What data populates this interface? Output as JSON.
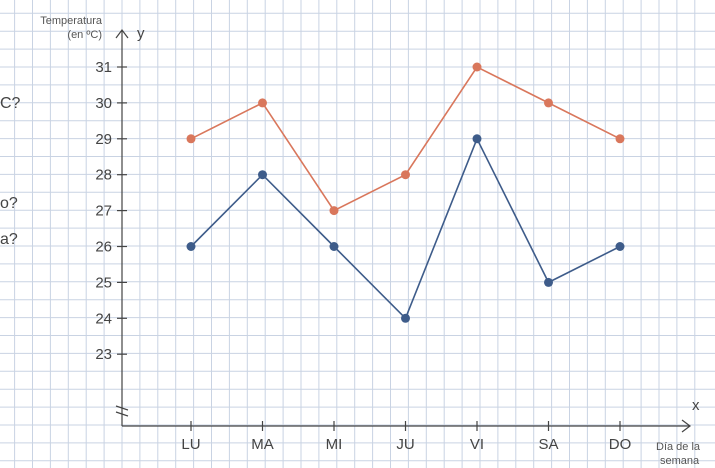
{
  "chart_data": {
    "type": "line",
    "ylabel_line1": "Temperatura",
    "ylabel_line2": "(en ºC)",
    "y_axis_letter": "y",
    "x_axis_letter": "x",
    "xlabel_line1": "Día de la",
    "xlabel_line2": "semana",
    "categories": [
      "LU",
      "MA",
      "MI",
      "JU",
      "VI",
      "SA",
      "DO"
    ],
    "y_ticks": [
      23,
      24,
      25,
      26,
      27,
      28,
      29,
      30,
      31
    ],
    "ylim": [
      23,
      31
    ],
    "y_axis_break": true,
    "grid": true,
    "series": [
      {
        "color": "#d9775c",
        "values": [
          29,
          30,
          27,
          28,
          31,
          30,
          29
        ]
      },
      {
        "color": "#3e5c8a",
        "values": [
          26,
          28,
          26,
          24,
          29,
          25,
          26
        ]
      }
    ]
  },
  "side_text": [
    "C?",
    "o?",
    "a?"
  ]
}
